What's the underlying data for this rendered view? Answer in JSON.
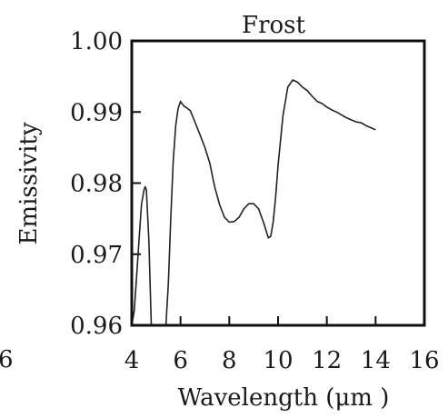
{
  "chart_data": {
    "type": "line",
    "title": "Frost",
    "xlabel": "Wavelength (μm )",
    "ylabel": "Emissivity",
    "xlim": [
      4,
      16
    ],
    "ylim": [
      0.96,
      1.0
    ],
    "x_ticks": [
      "4",
      "6",
      "8",
      "10",
      "12",
      "14",
      "16"
    ],
    "y_ticks": [
      "0.96",
      "0.97",
      "0.98",
      "0.99",
      "1.00"
    ],
    "grid": false,
    "edge_fragment_left": "6",
    "series": [
      {
        "x": [
          4.0,
          4.1,
          4.2,
          4.3,
          4.4,
          4.5,
          4.55,
          4.6,
          4.7,
          4.8,
          5.4,
          5.5,
          5.6,
          5.7,
          5.8,
          5.9,
          6.0,
          6.05,
          6.15,
          6.25,
          6.4,
          6.6,
          6.8,
          7.0,
          7.2,
          7.4,
          7.6,
          7.8,
          8.0,
          8.2,
          8.4,
          8.6,
          8.8,
          9.0,
          9.2,
          9.4,
          9.6,
          9.7,
          9.8,
          9.9,
          10.0,
          10.2,
          10.4,
          10.6,
          10.8,
          11.0,
          11.2,
          11.4,
          11.6,
          11.8,
          12.0,
          12.2,
          12.4,
          12.6,
          12.8,
          13.0,
          13.2,
          13.4,
          13.6,
          13.8,
          14.0
        ],
        "y": [
          0.96,
          0.962,
          0.967,
          0.972,
          0.977,
          0.979,
          0.9795,
          0.979,
          0.972,
          0.96,
          0.96,
          0.966,
          0.975,
          0.983,
          0.988,
          0.9905,
          0.9915,
          0.9912,
          0.9908,
          0.9906,
          0.9902,
          0.9885,
          0.9868,
          0.985,
          0.9828,
          0.9795,
          0.977,
          0.9752,
          0.9745,
          0.9746,
          0.9752,
          0.9764,
          0.9771,
          0.9771,
          0.9764,
          0.9745,
          0.9723,
          0.9725,
          0.9745,
          0.978,
          0.9825,
          0.9895,
          0.9935,
          0.9945,
          0.9942,
          0.9935,
          0.993,
          0.9922,
          0.9915,
          0.9912,
          0.9907,
          0.9903,
          0.99,
          0.9896,
          0.9892,
          0.9889,
          0.9886,
          0.9885,
          0.9881,
          0.9878,
          0.9875
        ]
      }
    ]
  }
}
